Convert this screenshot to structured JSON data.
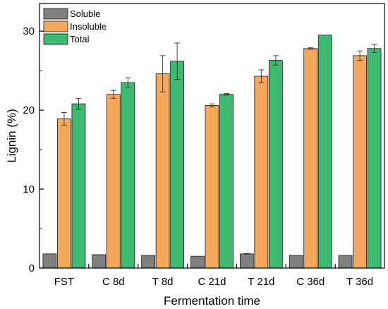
{
  "chart_data": {
    "type": "bar",
    "title": "",
    "xlabel": "Fermentation time",
    "ylabel": "Lignin (%)",
    "ylim": [
      0,
      33.5
    ],
    "yticks": [
      0,
      10,
      20,
      30
    ],
    "grid": false,
    "legend_position": "top-left",
    "categories": [
      "FST",
      "C 8d",
      "T 8d",
      "C 21d",
      "T 21d",
      "C 36d",
      "T 36d"
    ],
    "series": [
      {
        "name": "Soluble",
        "color": "#7f7f7f",
        "values": [
          1.8,
          1.7,
          1.6,
          1.5,
          1.8,
          1.6,
          1.6
        ],
        "errors": [
          0,
          0,
          0,
          0,
          0.05,
          0,
          0
        ]
      },
      {
        "name": "Insoluble",
        "color": "#f5a85a",
        "values": [
          18.9,
          22.0,
          24.6,
          20.6,
          24.3,
          27.8,
          26.9
        ],
        "errors": [
          0.8,
          0.5,
          2.3,
          0.2,
          0.8,
          0.1,
          0.6
        ]
      },
      {
        "name": "Total",
        "color": "#3dba6f",
        "values": [
          20.8,
          23.5,
          26.2,
          22.0,
          26.3,
          29.5,
          27.8
        ],
        "errors": [
          0.7,
          0.6,
          2.3,
          0.1,
          0.6,
          0,
          0.5
        ]
      }
    ]
  }
}
